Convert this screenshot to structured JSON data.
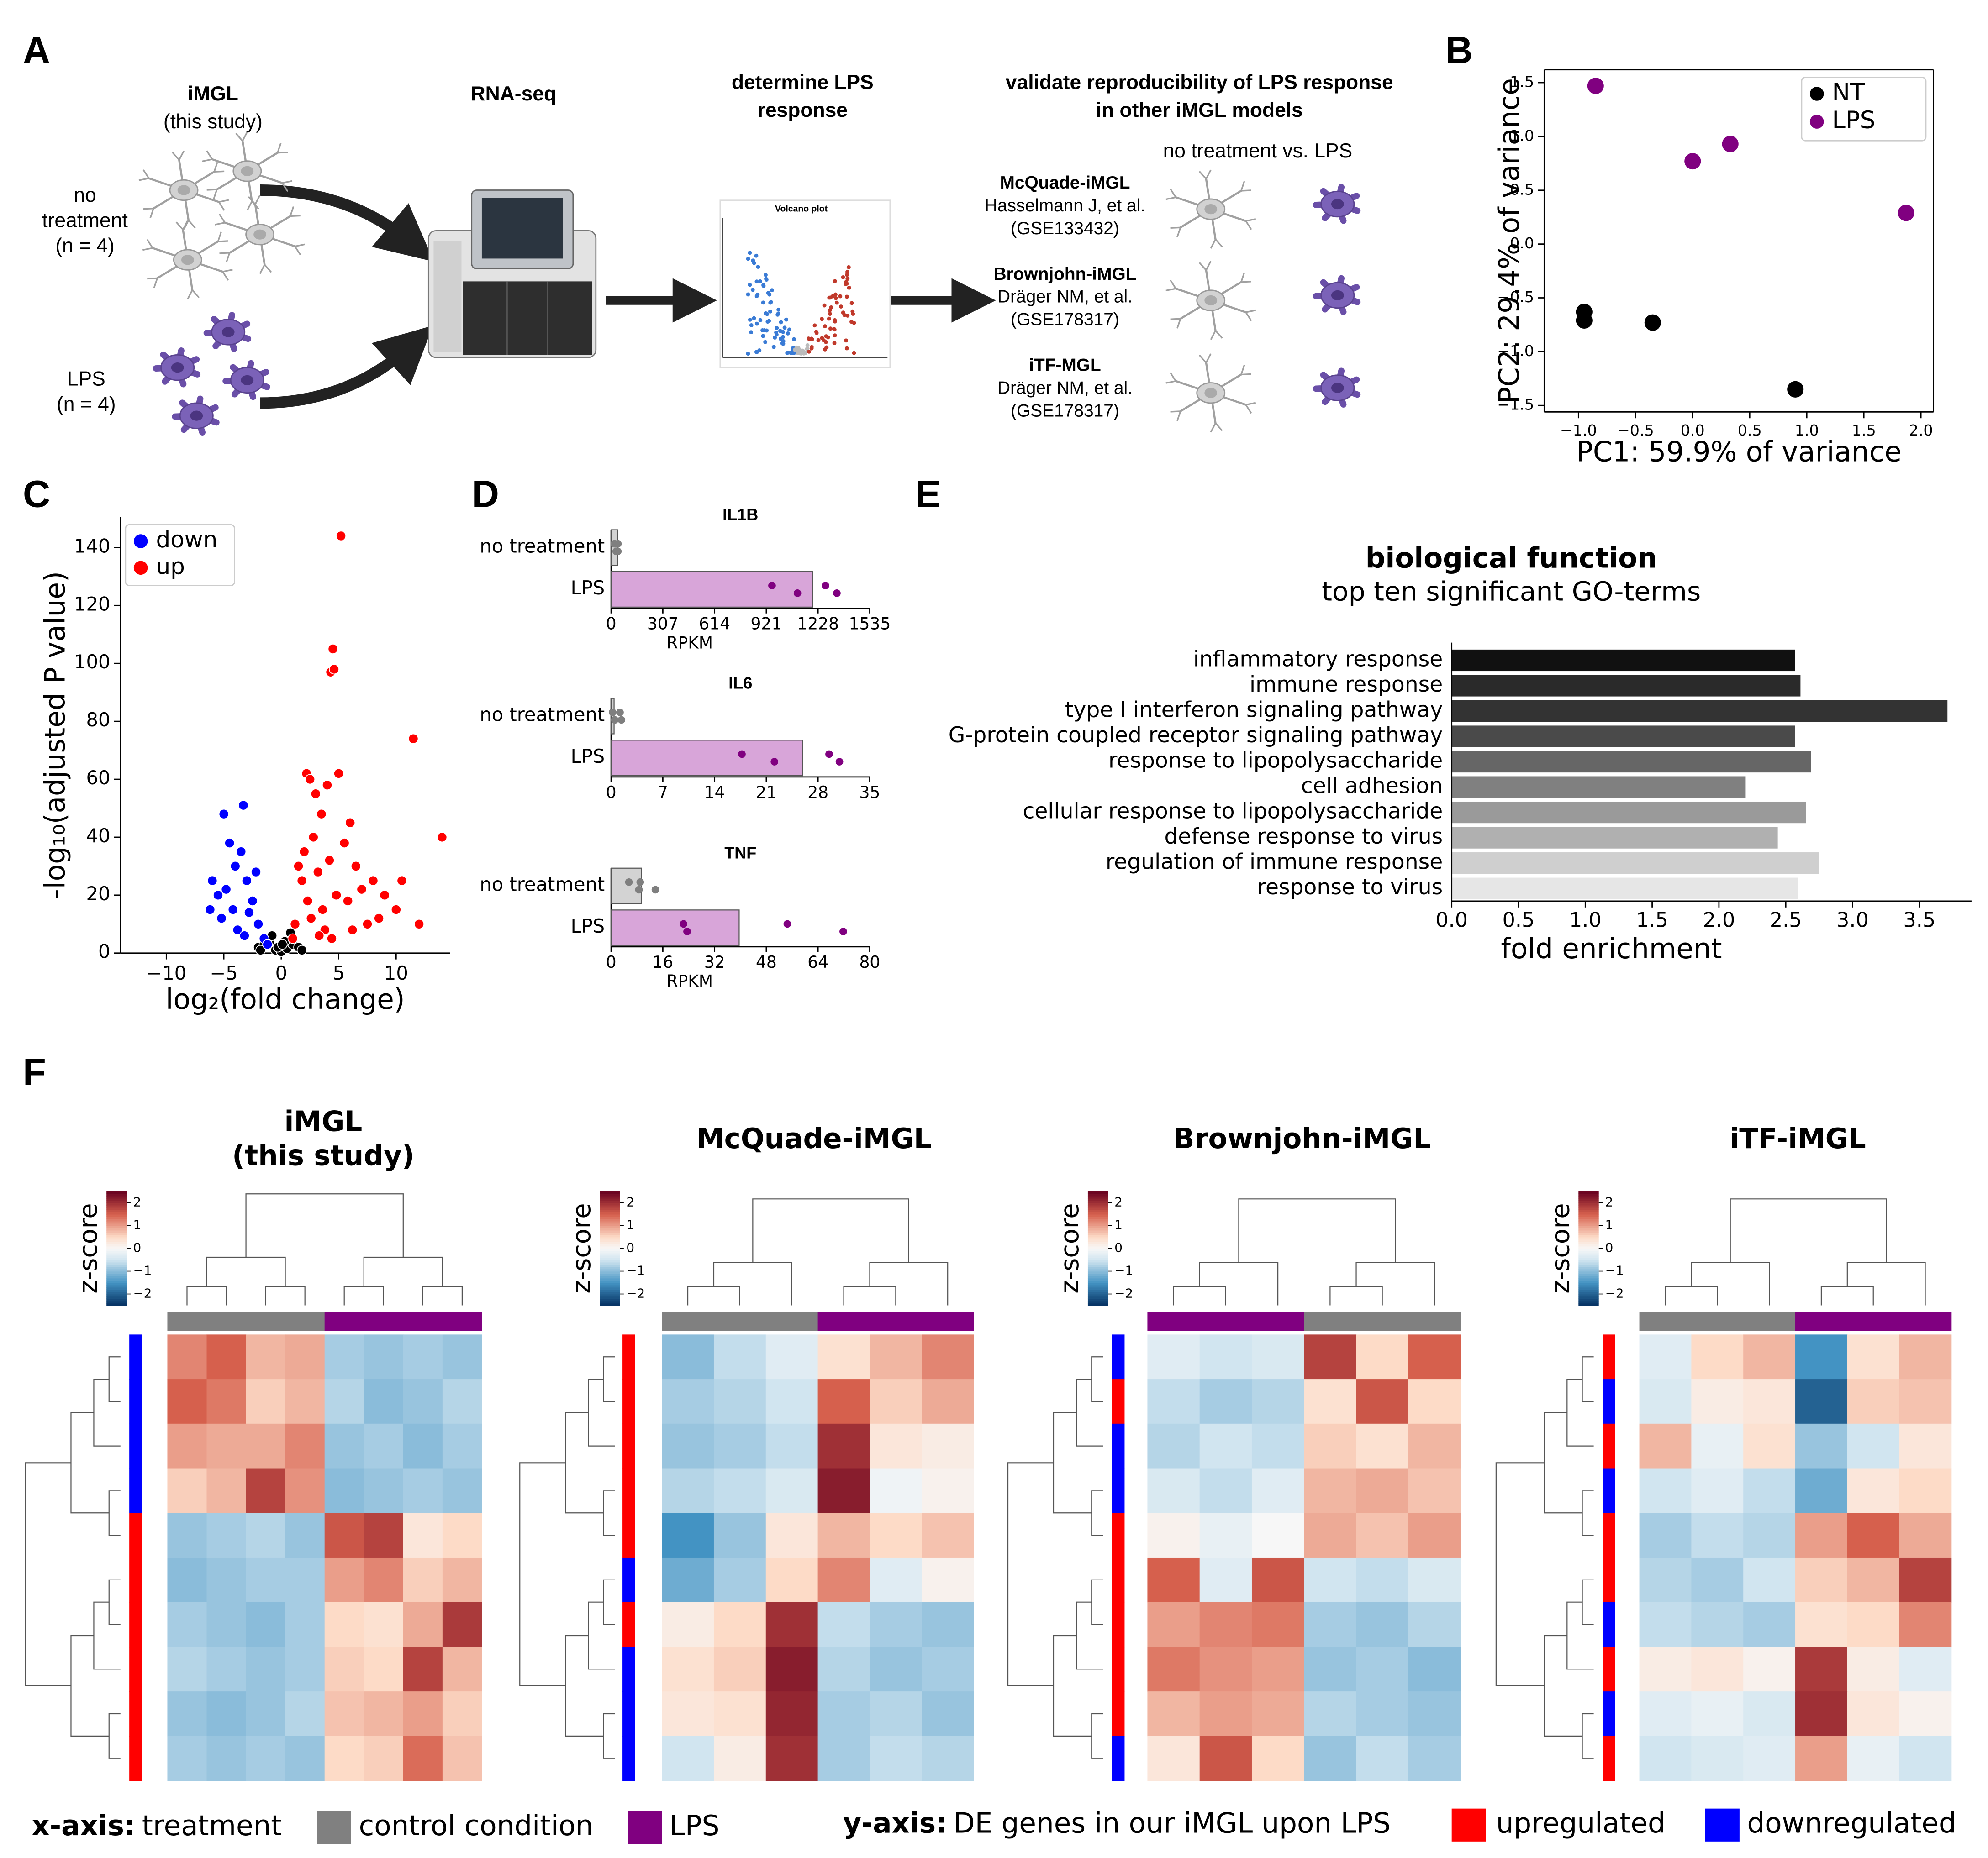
{
  "panels": [
    "A",
    "B",
    "C",
    "D",
    "E",
    "F"
  ],
  "schematic": {
    "steps": [
      {
        "lines": [
          "iMGL",
          "(this study)"
        ]
      },
      {
        "lines": [
          "RNA-seq"
        ]
      },
      {
        "lines": [
          "determine LPS",
          "response"
        ]
      },
      {
        "lines": [
          "validate reproducibility of LPS response",
          "in other iMGL models"
        ]
      }
    ],
    "conditions": [
      {
        "lines": [
          "no",
          "treatment",
          "(n = 4)"
        ]
      },
      {
        "lines": [
          "LPS",
          "(n = 4)"
        ]
      }
    ],
    "comparison": "no treatment vs. LPS",
    "mini_plot_title": "Volcano plot",
    "models": [
      {
        "name": "McQuade-iMGL",
        "lines": [
          "Hasselmann J, et al.",
          "(GSE133432)"
        ]
      },
      {
        "name": "Brownjohn-iMGL",
        "lines": [
          "Dräger NM, et al.",
          "(GSE178317)"
        ]
      },
      {
        "name": "iTF-MGL",
        "lines": [
          "Dräger NM, et al.",
          "(GSE178317)"
        ]
      }
    ]
  },
  "chart_data": [
    {
      "type": "scatter",
      "xlabel": "PC1: 59.9% of variance",
      "ylabel": "PC2: 29.4% of variance",
      "xlim": [
        -1.3,
        2.11
      ],
      "ylim": [
        -1.56,
        1.62
      ],
      "xticks": [
        {
          "value": -1.0,
          "label": "−1.0"
        },
        {
          "value": -0.5,
          "label": "−0.5"
        },
        {
          "value": 0.0,
          "label": "0.0"
        },
        0.5,
        {
          "value": 1.0,
          "label": "1.0"
        },
        1.5,
        {
          "value": 2.0,
          "label": "2.0"
        }
      ],
      "yticks": [
        {
          "value": -1.5,
          "label": "−1.5"
        },
        {
          "value": -1.0,
          "label": "−1.0"
        },
        {
          "value": -0.5,
          "label": "−0.5"
        },
        {
          "value": 0.0,
          "label": "0.0"
        },
        0.5,
        {
          "value": 1.0,
          "label": "1.0"
        },
        1.5
      ],
      "legend": "upper right",
      "frame": true,
      "series": [
        {
          "name": "NT",
          "color": "#000000",
          "x": [
            -0.95,
            -0.95,
            -0.35,
            0.9
          ],
          "values": [
            -0.63,
            -0.71,
            -0.73,
            -1.35
          ]
        },
        {
          "name": "LPS",
          "color": "#800080",
          "x": [
            -0.85,
            0.0,
            0.33,
            1.87
          ],
          "values": [
            1.47,
            0.77,
            0.93,
            0.29
          ]
        }
      ]
    },
    {
      "type": "scatter",
      "xlabel": "log₂(fold change)",
      "ylabel": "-log₁₀(adjusted P value)",
      "xlim": [
        -14.0,
        14.7
      ],
      "ylim": [
        0,
        150.5
      ],
      "xticks": [
        {
          "value": -10,
          "label": "−10"
        },
        {
          "value": -5,
          "label": "−5"
        },
        0,
        5,
        10
      ],
      "yticks": [
        0,
        20,
        40,
        60,
        80,
        100,
        120,
        140
      ],
      "legend": "upper left",
      "frame": false,
      "series": [
        {
          "color": "#000000",
          "x": [
            -2.0,
            -1.5,
            -1.0,
            -0.5,
            0,
            0.5,
            1.0,
            1.5,
            -0.8,
            0.3,
            0.8,
            -1.8,
            1.8,
            -0.3,
            0.1
          ],
          "values": [
            2,
            3,
            4,
            1,
            0.5,
            1.5,
            3,
            2,
            6,
            4,
            7,
            1,
            1,
            2,
            3
          ]
        },
        {
          "name": "down",
          "color": "#0000ff",
          "x": [
            -3.3,
            -5.0,
            -4.5,
            -6.0,
            -5.5,
            -4.0,
            -3.5,
            -3.0,
            -2.5,
            -4.2,
            -5.2,
            -2.0,
            -1.5,
            -3.8,
            -4.8,
            -2.8,
            -1.2,
            -6.2,
            -3.2,
            -2.2
          ],
          "values": [
            51,
            48,
            38,
            25,
            20,
            30,
            35,
            25,
            18,
            15,
            12,
            10,
            5,
            8,
            22,
            14,
            3,
            15,
            6,
            28
          ]
        },
        {
          "name": "up",
          "color": "#ff0000",
          "x": [
            5.2,
            4.5,
            4.3,
            4.6,
            11.5,
            14.0,
            2.2,
            2.5,
            3.0,
            4.0,
            5.0,
            6.0,
            3.5,
            2.8,
            1.5,
            1.8,
            2.0,
            3.2,
            4.2,
            5.5,
            6.5,
            7.0,
            8.0,
            9.0,
            10.0,
            10.5,
            12.0,
            3.8,
            2.3,
            1.2,
            1.0,
            2.6,
            3.6,
            4.8,
            5.8,
            7.5,
            8.5,
            6.2,
            4.4,
            3.3
          ],
          "values": [
            144,
            105,
            97,
            98,
            74,
            40,
            62,
            60,
            55,
            58,
            62,
            45,
            48,
            40,
            30,
            25,
            35,
            28,
            32,
            38,
            30,
            22,
            25,
            20,
            15,
            25,
            10,
            8,
            18,
            10,
            5,
            12,
            15,
            20,
            18,
            10,
            12,
            8,
            5,
            6
          ]
        }
      ]
    },
    {
      "type": "bar",
      "orientation": "horizontal",
      "title": "IL1B",
      "xlabel": "RPKM",
      "categories": [
        "no treatment",
        "LPS"
      ],
      "values": [
        38,
        1196
      ],
      "colors": [
        "#d3d3d3",
        "#d8a5d9"
      ],
      "point_colors": [
        "#7f7f7f",
        "#800080"
      ],
      "points": [
        [
          20,
          30,
          40,
          40
        ],
        [
          955,
          1106,
          1272,
          1340
        ]
      ],
      "xlim": [
        0,
        1535
      ],
      "xticks": [
        0,
        307,
        614,
        921,
        1228,
        1535
      ]
    },
    {
      "type": "bar",
      "orientation": "horizontal",
      "title": "IL6",
      "categories": [
        "no treatment",
        "LPS"
      ],
      "values": [
        0.4,
        25.9
      ],
      "colors": [
        "#d3d3d3",
        "#d8a5d9"
      ],
      "point_colors": [
        "#7f7f7f",
        "#800080"
      ],
      "points": [
        [
          0.2,
          0.5,
          1.2,
          1.4
        ],
        [
          17.7,
          22.1,
          29.5,
          30.9
        ]
      ],
      "xlim": [
        0,
        35
      ],
      "xticks": [
        0,
        7,
        14,
        21,
        28,
        35
      ]
    },
    {
      "type": "bar",
      "orientation": "horizontal",
      "title": "TNF",
      "xlabel": "RPKM",
      "categories": [
        "no treatment",
        "LPS"
      ],
      "values": [
        9.4,
        39.6
      ],
      "colors": [
        "#d3d3d3",
        "#d8a5d9"
      ],
      "point_colors": [
        "#7f7f7f",
        "#800080"
      ],
      "points": [
        [
          5.5,
          8.6,
          9.0,
          13.7
        ],
        [
          22.4,
          23.5,
          54.5,
          71.8
        ]
      ],
      "xlim": [
        0,
        80
      ],
      "xticks": [
        0,
        16,
        32,
        48,
        64,
        80
      ]
    },
    {
      "type": "barh",
      "title": "biological function",
      "subtitle": "top ten significant GO-terms",
      "xlabel": "fold enrichment",
      "categories": [
        "inflammatory response",
        "immune response",
        "type I interferon signaling pathway",
        "G-protein coupled receptor signaling pathway",
        "response to lipopolysaccharide",
        "cell adhesion",
        "cellular response to lipopolysaccharide",
        "defense response to virus",
        "regulation of immune response",
        "response to virus"
      ],
      "values": [
        2.57,
        2.61,
        3.71,
        2.57,
        2.69,
        2.2,
        2.65,
        2.44,
        2.75,
        2.59
      ],
      "colors": [
        "#111111",
        "#2a2a2a",
        "#333333",
        "#4a4a4a",
        "#666666",
        "#808080",
        "#9a9a9a",
        "#b0b0b0",
        "#cfcfcf",
        "#e6e6e6"
      ],
      "xlim": [
        0,
        3.89
      ],
      "xticks": [
        {
          "value": 0.0,
          "label": "0.0"
        },
        0.5,
        {
          "value": 1.0,
          "label": "1.0"
        },
        1.5,
        {
          "value": 2.0,
          "label": "2.0"
        },
        2.5,
        {
          "value": 3.0,
          "label": "3.0"
        },
        3.5
      ]
    },
    {
      "type": "heatmap",
      "title": [
        "iMGL",
        "(this study)"
      ],
      "colorbar_label": "z-score",
      "zlim": [
        -2.5,
        2.5
      ],
      "zticks": [
        {
          "value": -2,
          "label": "−2"
        },
        {
          "value": -1,
          "label": "−1"
        },
        0,
        1,
        2
      ],
      "column_colors": [
        "#808080",
        "#808080",
        "#808080",
        "#808080",
        "#800080",
        "#800080",
        "#800080",
        "#800080"
      ],
      "row_colors": [
        "#0000ff",
        "#0000ff",
        "#0000ff",
        "#0000ff",
        "#ff0000",
        "#ff0000",
        "#ff0000",
        "#ff0000",
        "#ff0000",
        "#ff0000"
      ],
      "values": [
        [
          1.2,
          1.5,
          0.8,
          0.9,
          -0.8,
          -0.9,
          -0.8,
          -0.9
        ],
        [
          1.5,
          1.3,
          0.6,
          0.8,
          -0.7,
          -1.0,
          -0.9,
          -0.7
        ],
        [
          1.0,
          0.9,
          0.9,
          1.2,
          -0.9,
          -0.8,
          -1.0,
          -0.8
        ],
        [
          0.6,
          0.8,
          1.8,
          1.1,
          -1.0,
          -0.9,
          -0.8,
          -0.9
        ],
        [
          -0.9,
          -0.8,
          -0.7,
          -0.9,
          1.6,
          1.8,
          0.3,
          0.5
        ],
        [
          -1.0,
          -0.9,
          -0.8,
          -0.8,
          1.0,
          1.2,
          0.6,
          0.8
        ],
        [
          -0.8,
          -0.9,
          -1.0,
          -0.8,
          0.5,
          0.4,
          0.9,
          1.9
        ],
        [
          -0.7,
          -0.8,
          -0.9,
          -0.8,
          0.6,
          0.5,
          1.8,
          0.8
        ],
        [
          -0.9,
          -1.0,
          -0.9,
          -0.7,
          0.7,
          0.8,
          1.0,
          0.6
        ],
        [
          -0.8,
          -0.9,
          -0.8,
          -0.9,
          0.5,
          0.6,
          1.4,
          0.7
        ]
      ]
    },
    {
      "type": "heatmap",
      "title": [
        "McQuade-iMGL"
      ],
      "colorbar_label": "z-score",
      "zlim": [
        -2.5,
        2.5
      ],
      "zticks": [
        {
          "value": -2,
          "label": "−2"
        },
        {
          "value": -1,
          "label": "−1"
        },
        0,
        1,
        2
      ],
      "column_colors": [
        "#808080",
        "#808080",
        "#808080",
        "#800080",
        "#800080",
        "#800080"
      ],
      "row_colors": [
        "#ff0000",
        "#ff0000",
        "#ff0000",
        "#ff0000",
        "#ff0000",
        "#0000ff",
        "#ff0000",
        "#0000ff",
        "#0000ff",
        "#0000ff"
      ],
      "values": [
        [
          -1.0,
          -0.6,
          -0.3,
          0.4,
          0.8,
          1.2
        ],
        [
          -0.8,
          -0.7,
          -0.5,
          1.5,
          0.6,
          0.9
        ],
        [
          -0.9,
          -0.8,
          -0.6,
          2.0,
          0.3,
          0.2
        ],
        [
          -0.7,
          -0.6,
          -0.4,
          2.2,
          -0.1,
          0.1
        ],
        [
          -1.5,
          -0.9,
          0.3,
          0.8,
          0.5,
          0.7
        ],
        [
          -1.2,
          -0.8,
          0.5,
          1.2,
          -0.3,
          0.1
        ],
        [
          0.2,
          0.5,
          2.0,
          -0.6,
          -0.8,
          -0.9
        ],
        [
          0.4,
          0.6,
          2.2,
          -0.7,
          -0.9,
          -0.8
        ],
        [
          0.3,
          0.4,
          2.1,
          -0.8,
          -0.7,
          -0.9
        ],
        [
          -0.5,
          0.2,
          2.0,
          -0.8,
          -0.6,
          -0.7
        ]
      ]
    },
    {
      "type": "heatmap",
      "title": [
        "Brownjohn-iMGL"
      ],
      "colorbar_label": "z-score",
      "zlim": [
        -2.5,
        2.5
      ],
      "zticks": [
        {
          "value": -2,
          "label": "−2"
        },
        {
          "value": -1,
          "label": "−1"
        },
        0,
        1,
        2
      ],
      "column_colors": [
        "#800080",
        "#800080",
        "#800080",
        "#808080",
        "#808080",
        "#808080"
      ],
      "row_colors": [
        "#0000ff",
        "#ff0000",
        "#0000ff",
        "#0000ff",
        "#ff0000",
        "#ff0000",
        "#ff0000",
        "#ff0000",
        "#ff0000",
        "#0000ff"
      ],
      "values": [
        [
          -0.3,
          -0.5,
          -0.4,
          1.8,
          0.5,
          1.5
        ],
        [
          -0.6,
          -0.8,
          -0.7,
          0.4,
          1.6,
          0.5
        ],
        [
          -0.7,
          -0.5,
          -0.6,
          0.6,
          0.4,
          0.8
        ],
        [
          -0.4,
          -0.6,
          -0.3,
          0.8,
          0.9,
          0.7
        ],
        [
          0.1,
          -0.2,
          0.0,
          0.9,
          0.7,
          1.0
        ],
        [
          1.5,
          -0.3,
          1.6,
          -0.5,
          -0.6,
          -0.4
        ],
        [
          1.0,
          1.2,
          1.3,
          -0.8,
          -0.9,
          -0.7
        ],
        [
          1.3,
          1.1,
          1.0,
          -0.9,
          -0.8,
          -1.0
        ],
        [
          0.8,
          1.0,
          0.9,
          -0.7,
          -0.8,
          -0.9
        ],
        [
          0.3,
          1.6,
          0.5,
          -0.9,
          -0.6,
          -0.8
        ]
      ]
    },
    {
      "type": "heatmap",
      "title": [
        "iTF-iMGL"
      ],
      "colorbar_label": "z-score",
      "zlim": [
        -2.5,
        2.5
      ],
      "zticks": [
        {
          "value": -2,
          "label": "−2"
        },
        {
          "value": -1,
          "label": "−1"
        },
        0,
        1,
        2
      ],
      "column_colors": [
        "#808080",
        "#808080",
        "#808080",
        "#800080",
        "#800080",
        "#800080"
      ],
      "row_colors": [
        "#ff0000",
        "#0000ff",
        "#ff0000",
        "#0000ff",
        "#ff0000",
        "#ff0000",
        "#0000ff",
        "#ff0000",
        "#0000ff",
        "#ff0000"
      ],
      "values": [
        [
          -0.3,
          0.5,
          0.8,
          -1.5,
          0.4,
          0.8
        ],
        [
          -0.4,
          0.2,
          0.3,
          -2.0,
          0.6,
          0.7
        ],
        [
          0.8,
          -0.2,
          0.4,
          -0.9,
          -0.5,
          0.3
        ],
        [
          -0.5,
          -0.3,
          -0.6,
          -1.2,
          0.3,
          0.5
        ],
        [
          -0.8,
          -0.6,
          -0.7,
          1.0,
          1.5,
          0.9
        ],
        [
          -0.7,
          -0.8,
          -0.5,
          0.6,
          0.8,
          1.8
        ],
        [
          -0.6,
          -0.7,
          -0.8,
          0.4,
          0.5,
          1.2
        ],
        [
          0.2,
          0.3,
          0.1,
          1.9,
          0.2,
          -0.3
        ],
        [
          -0.3,
          -0.2,
          -0.4,
          2.0,
          0.3,
          0.1
        ],
        [
          -0.5,
          -0.4,
          -0.3,
          1.0,
          -0.2,
          -0.5
        ]
      ]
    }
  ],
  "heatmap_legend": {
    "x_axis": {
      "label": "x-axis:",
      "text": "treatment",
      "items": [
        {
          "name": "control condition",
          "color": "#808080"
        },
        {
          "name": "LPS",
          "color": "#800080"
        }
      ]
    },
    "y_axis": {
      "label": "y-axis:",
      "text": "DE genes in our iMGL upon LPS",
      "items": [
        {
          "name": "upregulated",
          "color": "#ff0000"
        },
        {
          "name": "downregulated",
          "color": "#0000ff"
        }
      ]
    }
  }
}
